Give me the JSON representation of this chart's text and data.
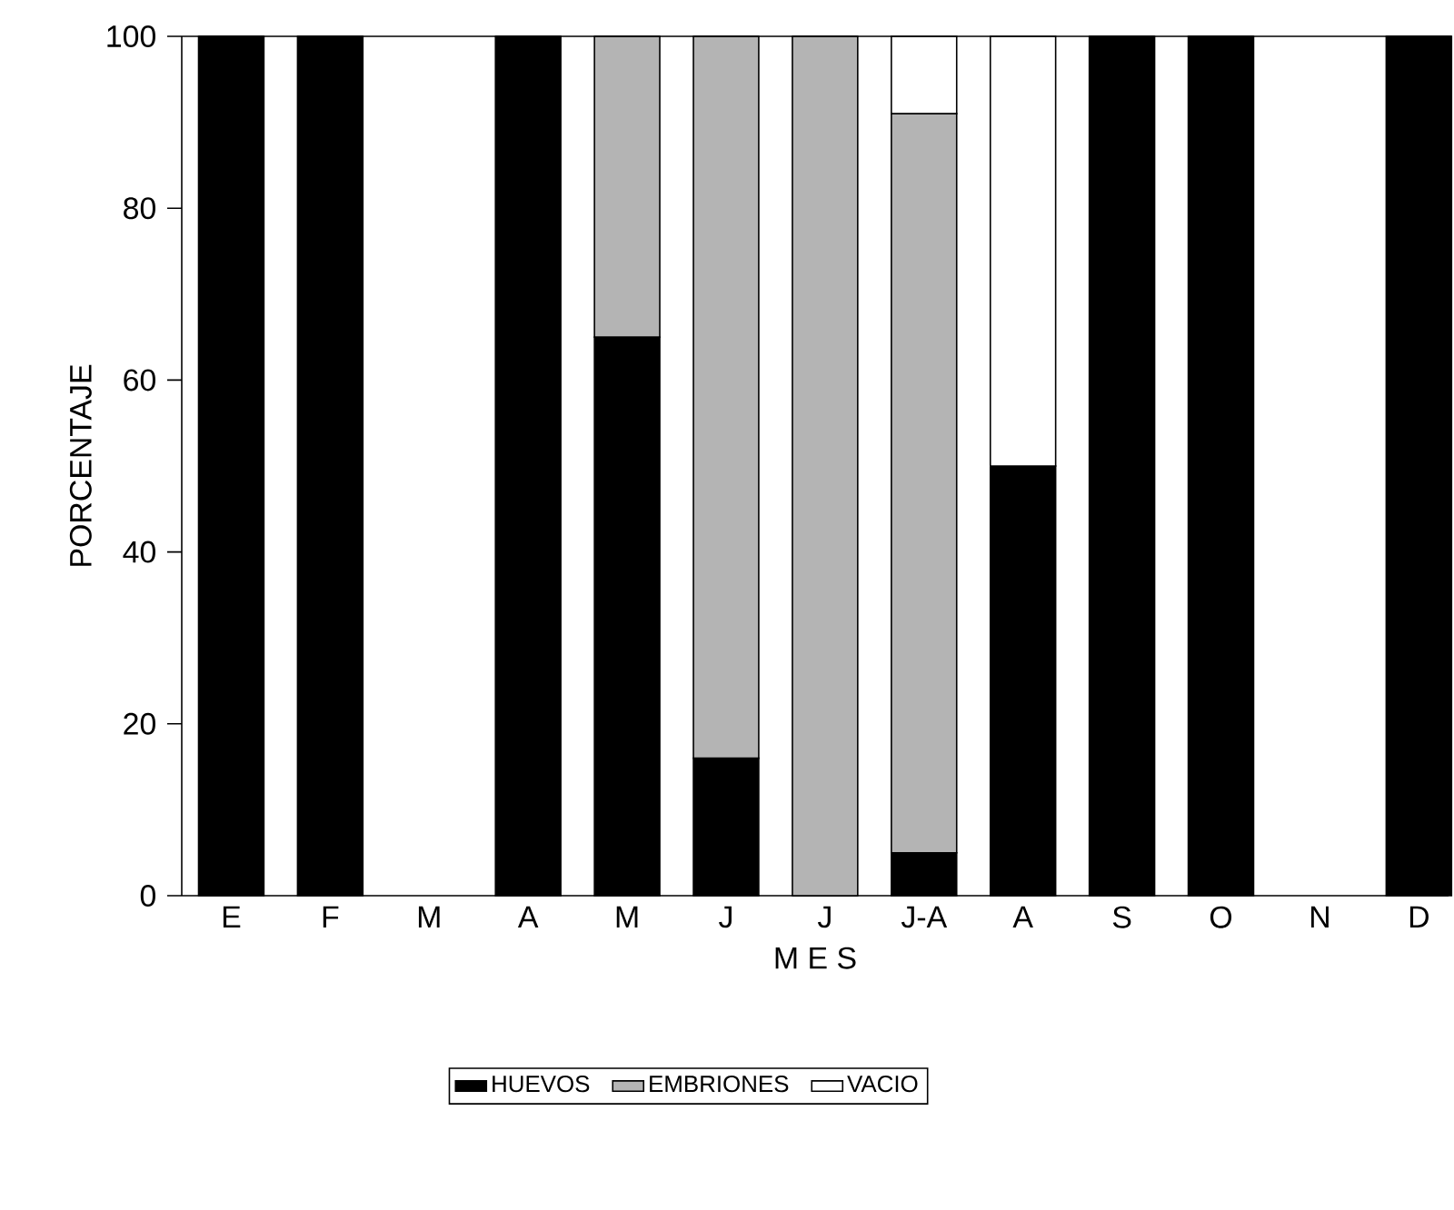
{
  "chart_data": {
    "type": "bar",
    "stacked": true,
    "xlabel": "M E S",
    "ylabel": "PORCENTAJE",
    "categories": [
      "E",
      "F",
      "M",
      "A",
      "M",
      "J",
      "J",
      "J-A",
      "A",
      "S",
      "O",
      "N",
      "D"
    ],
    "series": [
      {
        "name": "HUEVOS",
        "color": "#000000",
        "values": [
          100,
          100,
          null,
          100,
          65,
          16,
          0,
          5,
          50,
          100,
          100,
          null,
          100
        ]
      },
      {
        "name": "EMBRIONES",
        "color": "#b4b4b4",
        "values": [
          0,
          0,
          null,
          0,
          35,
          84,
          100,
          86,
          0,
          0,
          0,
          null,
          0
        ]
      },
      {
        "name": "VACIO",
        "color": "#ffffff",
        "values": [
          0,
          0,
          null,
          0,
          0,
          0,
          0,
          9,
          50,
          0,
          0,
          null,
          0
        ]
      }
    ],
    "ylim": [
      0,
      100
    ],
    "yticks": [
      0,
      20,
      40,
      60,
      80,
      100
    ],
    "grid": false,
    "legend": "bottom"
  }
}
